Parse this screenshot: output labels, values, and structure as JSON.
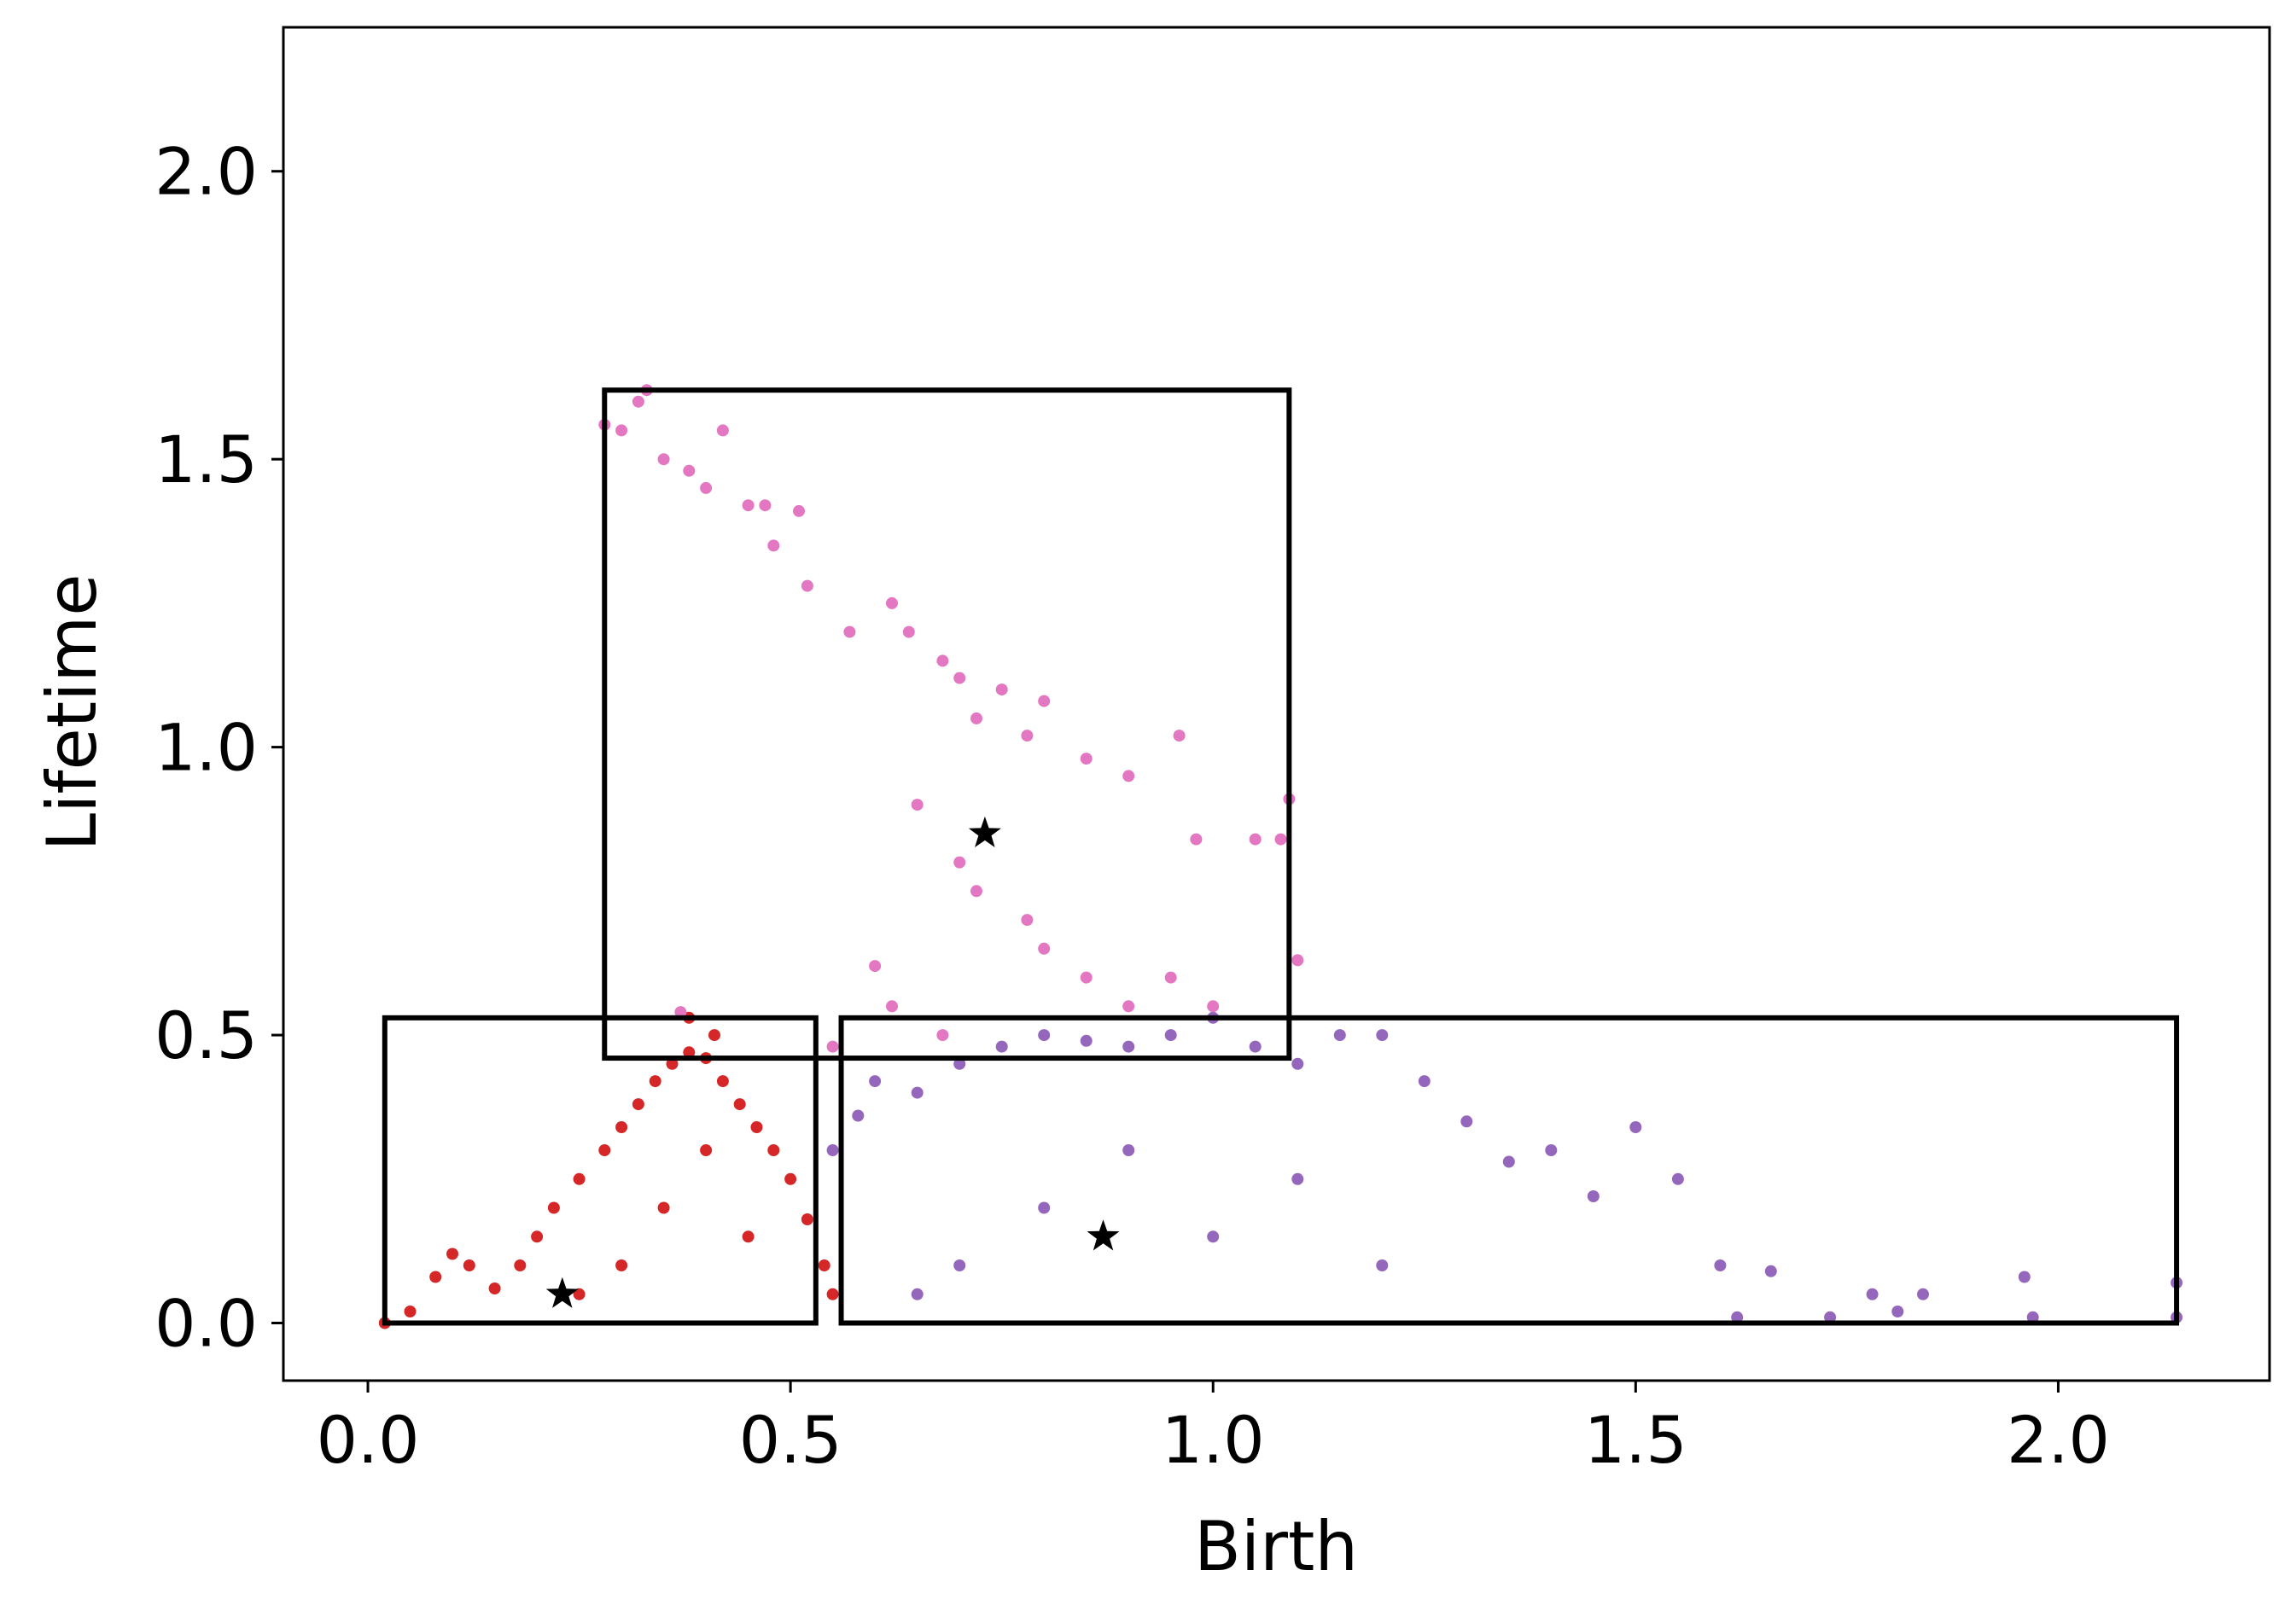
{
  "chart_data": {
    "type": "scatter",
    "title": "",
    "xlabel": "Birth",
    "ylabel": "Lifetime",
    "xlim": [
      -0.1,
      2.25
    ],
    "ylim": [
      -0.1,
      2.25
    ],
    "xticks": [
      "0.0",
      "0.5",
      "1.0",
      "1.5",
      "2.0"
    ],
    "yticks": [
      "0.0",
      "0.5",
      "1.0",
      "1.5",
      "2.0"
    ],
    "xtick_values": [
      0.0,
      0.5,
      1.0,
      1.5,
      2.0
    ],
    "ytick_values": [
      0.0,
      0.5,
      1.0,
      1.5,
      2.0
    ],
    "grid": false,
    "legend": "none",
    "series": [
      {
        "color": "#d62728",
        "marker": "circle",
        "approx_points": [
          [
            0.02,
            0.0
          ],
          [
            0.05,
            0.02
          ],
          [
            0.08,
            0.08
          ],
          [
            0.1,
            0.12
          ],
          [
            0.12,
            0.1
          ],
          [
            0.15,
            0.06
          ],
          [
            0.18,
            0.1
          ],
          [
            0.2,
            0.15
          ],
          [
            0.22,
            0.2
          ],
          [
            0.25,
            0.25
          ],
          [
            0.28,
            0.3
          ],
          [
            0.3,
            0.34
          ],
          [
            0.32,
            0.38
          ],
          [
            0.34,
            0.42
          ],
          [
            0.36,
            0.45
          ],
          [
            0.38,
            0.47
          ],
          [
            0.4,
            0.46
          ],
          [
            0.42,
            0.42
          ],
          [
            0.44,
            0.38
          ],
          [
            0.46,
            0.34
          ],
          [
            0.48,
            0.3
          ],
          [
            0.5,
            0.25
          ],
          [
            0.52,
            0.18
          ],
          [
            0.54,
            0.1
          ],
          [
            0.55,
            0.05
          ],
          [
            0.3,
            0.1
          ],
          [
            0.35,
            0.2
          ],
          [
            0.4,
            0.3
          ],
          [
            0.45,
            0.15
          ],
          [
            0.25,
            0.05
          ],
          [
            0.38,
            0.53
          ],
          [
            0.41,
            0.5
          ]
        ]
      },
      {
        "color": "#9467bd",
        "marker": "circle",
        "approx_points": [
          [
            0.55,
            0.3
          ],
          [
            0.58,
            0.36
          ],
          [
            0.6,
            0.42
          ],
          [
            0.65,
            0.4
          ],
          [
            0.7,
            0.45
          ],
          [
            0.75,
            0.48
          ],
          [
            0.8,
            0.5
          ],
          [
            0.85,
            0.49
          ],
          [
            0.9,
            0.48
          ],
          [
            0.95,
            0.5
          ],
          [
            1.0,
            0.53
          ],
          [
            1.05,
            0.48
          ],
          [
            1.1,
            0.45
          ],
          [
            1.15,
            0.5
          ],
          [
            1.2,
            0.5
          ],
          [
            1.25,
            0.42
          ],
          [
            1.3,
            0.35
          ],
          [
            1.35,
            0.28
          ],
          [
            1.4,
            0.3
          ],
          [
            1.45,
            0.22
          ],
          [
            1.5,
            0.34
          ],
          [
            1.55,
            0.25
          ],
          [
            1.6,
            0.1
          ],
          [
            1.62,
            0.01
          ],
          [
            1.66,
            0.09
          ],
          [
            1.73,
            0.01
          ],
          [
            1.78,
            0.05
          ],
          [
            1.81,
            0.02
          ],
          [
            1.84,
            0.05
          ],
          [
            1.96,
            0.08
          ],
          [
            1.97,
            0.01
          ],
          [
            2.14,
            0.07
          ],
          [
            2.14,
            0.01
          ],
          [
            0.7,
            0.1
          ],
          [
            0.8,
            0.2
          ],
          [
            0.9,
            0.3
          ],
          [
            1.0,
            0.15
          ],
          [
            1.1,
            0.25
          ],
          [
            0.65,
            0.05
          ],
          [
            1.2,
            0.1
          ]
        ]
      },
      {
        "color": "#e377c2",
        "marker": "circle",
        "approx_points": [
          [
            0.28,
            1.56
          ],
          [
            0.3,
            1.55
          ],
          [
            0.32,
            1.6
          ],
          [
            0.33,
            1.62
          ],
          [
            0.35,
            1.5
          ],
          [
            0.38,
            1.48
          ],
          [
            0.4,
            1.45
          ],
          [
            0.42,
            1.55
          ],
          [
            0.45,
            1.42
          ],
          [
            0.47,
            1.42
          ],
          [
            0.48,
            1.35
          ],
          [
            0.51,
            1.41
          ],
          [
            0.52,
            1.28
          ],
          [
            0.57,
            1.2
          ],
          [
            0.62,
            1.25
          ],
          [
            0.64,
            1.2
          ],
          [
            0.68,
            1.15
          ],
          [
            0.7,
            1.12
          ],
          [
            0.72,
            1.05
          ],
          [
            0.75,
            1.1
          ],
          [
            0.78,
            1.02
          ],
          [
            0.8,
            1.08
          ],
          [
            0.85,
            0.98
          ],
          [
            0.9,
            0.95
          ],
          [
            0.96,
            1.02
          ],
          [
            0.98,
            0.84
          ],
          [
            1.05,
            0.84
          ],
          [
            1.08,
            0.84
          ],
          [
            1.09,
            0.91
          ],
          [
            1.1,
            0.63
          ],
          [
            0.65,
            0.9
          ],
          [
            0.7,
            0.8
          ],
          [
            0.72,
            0.75
          ],
          [
            0.78,
            0.7
          ],
          [
            0.8,
            0.65
          ],
          [
            0.85,
            0.6
          ],
          [
            0.6,
            0.62
          ],
          [
            0.55,
            0.48
          ],
          [
            0.62,
            0.55
          ],
          [
            0.9,
            0.55
          ],
          [
            0.95,
            0.6
          ],
          [
            1.0,
            0.55
          ],
          [
            0.37,
            0.54
          ],
          [
            0.68,
            0.5
          ]
        ]
      }
    ],
    "centroids": [
      {
        "marker": "star",
        "color": "#000000",
        "x": 0.23,
        "y": 0.05
      },
      {
        "marker": "star",
        "color": "#000000",
        "x": 0.87,
        "y": 0.15
      },
      {
        "marker": "star",
        "color": "#000000",
        "x": 0.73,
        "y": 0.85
      }
    ],
    "boxes": [
      {
        "x0": 0.02,
        "x1": 0.53,
        "y0": 0.0,
        "y1": 0.53,
        "color": "#000000"
      },
      {
        "x0": 0.56,
        "x1": 2.14,
        "y0": 0.0,
        "y1": 0.53,
        "color": "#000000"
      },
      {
        "x0": 0.28,
        "x1": 1.09,
        "y0": 0.46,
        "y1": 1.62,
        "color": "#000000"
      }
    ]
  }
}
